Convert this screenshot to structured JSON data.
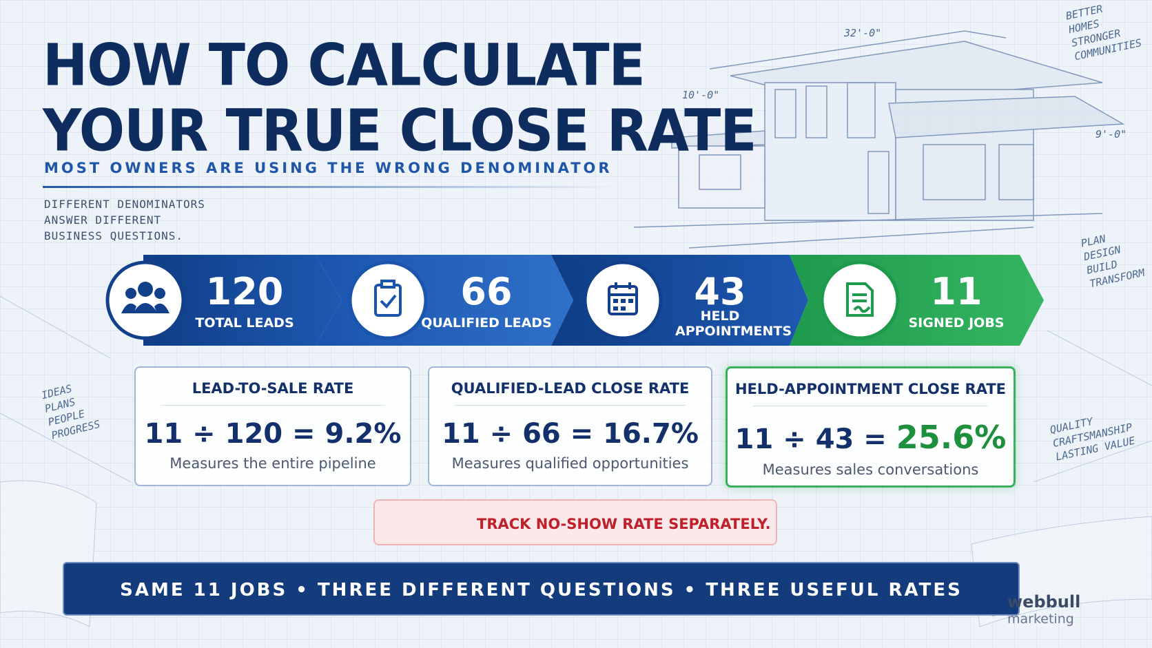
{
  "header": {
    "title_lines": [
      "HOW TO CALCULATE",
      "YOUR TRUE CLOSE RATE"
    ],
    "subtitle": "MOST OWNERS ARE USING THE WRONG DENOMINATOR",
    "note_lines": [
      "DIFFERENT DENOMINATORS",
      "ANSWER DIFFERENT",
      "BUSINESS QUESTIONS."
    ]
  },
  "funnel": [
    {
      "number": 120,
      "label": "TOTAL LEADS"
    },
    {
      "number": 66,
      "label": "QUALIFIED LEADS"
    },
    {
      "number": 43,
      "label": "HELD APPOINTMENTS"
    },
    {
      "number": 11,
      "label": "SIGNED JOBS"
    }
  ],
  "rates": [
    {
      "title": "LEAD-TO-SALE RATE",
      "formula": "11 ÷ 120 =",
      "result": "9.2%",
      "description": "Measures the entire pipeline"
    },
    {
      "title": "QUALIFIED-LEAD CLOSE RATE",
      "formula": "11 ÷ 66 =",
      "result": "16.7%",
      "description": "Measures qualified opportunities"
    },
    {
      "title": "HELD-APPOINTMENT CLOSE RATE",
      "formula": "11 ÷ 43 =",
      "result": "25.6%",
      "description": "Measures sales conversations"
    }
  ],
  "warning": "TRACK NO-SHOW RATE SEPARATELY.",
  "footer": "SAME 11 JOBS • THREE DIFFERENT QUESTIONS • THREE USEFUL RATES",
  "sketch_notes": {
    "dimensions": [
      "32'-0\"",
      "10'-0\"",
      "9'-0\""
    ],
    "top_right": [
      "BETTER",
      "HOMES",
      "STRONGER",
      "COMMUNITIES"
    ],
    "right": [
      "PLAN",
      "DESIGN",
      "BUILD",
      "TRANSFORM"
    ],
    "left": [
      "IDEAS",
      "PLANS",
      "PEOPLE",
      "PROGRESS"
    ],
    "bottom_right": [
      "QUALITY",
      "CRAFTSMANSHIP",
      "LASTING VALUE"
    ]
  },
  "logo": {
    "name": "webbull",
    "tagline": "marketing"
  }
}
